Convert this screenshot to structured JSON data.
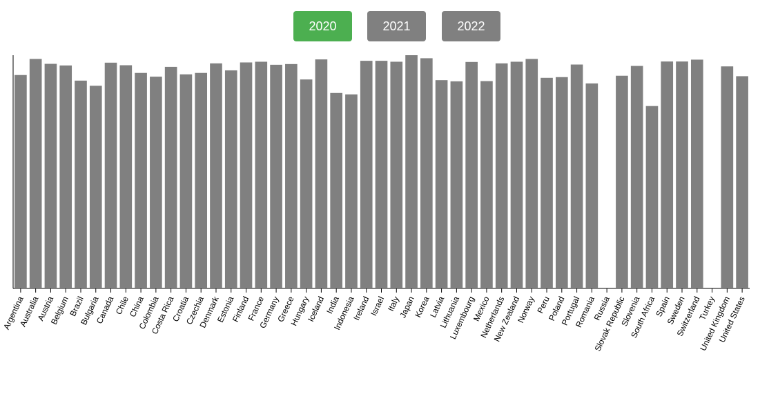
{
  "controls": {
    "years": [
      {
        "label": "2020",
        "active": true
      },
      {
        "label": "2021",
        "active": false
      },
      {
        "label": "2022",
        "active": false
      }
    ],
    "active_color": "#4caf50",
    "inactive_color": "#808080"
  },
  "chart_data": {
    "type": "bar",
    "bar_color": "#808080",
    "grid": false,
    "ylim": [
      0,
      100
    ],
    "categories": [
      "Argentina",
      "Australia",
      "Austria",
      "Belgium",
      "Brazil",
      "Bulgaria",
      "Canada",
      "Chile",
      "China",
      "Colombia",
      "Costa Rica",
      "Croatia",
      "Czechia",
      "Denmark",
      "Estonia",
      "Finland",
      "France",
      "Germany",
      "Greece",
      "Hungary",
      "Iceland",
      "India",
      "Indonesia",
      "Ireland",
      "Israel",
      "Italy",
      "Japan",
      "Korea",
      "Latvia",
      "Lithuania",
      "Luxembourg",
      "Mexico",
      "Netherlands",
      "New Zealand",
      "Norway",
      "Peru",
      "Poland",
      "Portugal",
      "Romania",
      "Russia",
      "Slovak Republic",
      "Slovenia",
      "South Africa",
      "Spain",
      "Sweden",
      "Switzerland",
      "Turkey",
      "United Kingdom",
      "United States"
    ],
    "values": [
      91.5,
      98.4,
      96.3,
      95.6,
      89.1,
      86.9,
      96.8,
      95.7,
      92.4,
      90.8,
      95.0,
      91.8,
      92.4,
      96.5,
      93.5,
      96.9,
      97.2,
      95.9,
      96.2,
      89.6,
      98.2,
      83.8,
      83.2,
      97.6,
      97.6,
      97.2,
      100.0,
      98.7,
      89.3,
      88.8,
      97.1,
      88.9,
      96.5,
      97.2,
      98.4,
      90.3,
      90.6,
      96.0,
      87.9,
      null,
      91.2,
      95.4,
      78.2,
      97.3,
      97.3,
      98.1,
      null,
      95.2,
      91.0
    ]
  }
}
